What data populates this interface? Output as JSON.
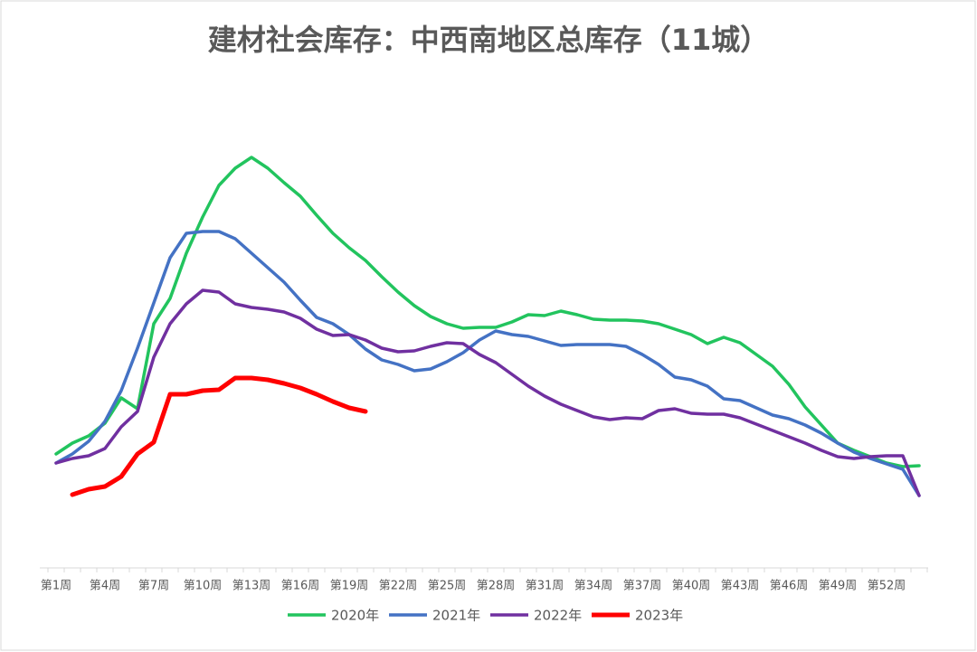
{
  "chart_data": {
    "type": "line",
    "title": "建材社会库存：中西南地区总库存（11城）",
    "categories": [
      "第1周",
      null,
      null,
      "第4周",
      null,
      null,
      "第7周",
      null,
      null,
      "第10周",
      null,
      null,
      "第13周",
      null,
      null,
      "第16周",
      null,
      null,
      "第19周",
      null,
      null,
      "第22周",
      null,
      null,
      "第25周",
      null,
      null,
      "第28周",
      null,
      null,
      "第31周",
      null,
      null,
      "第34周",
      null,
      null,
      "第37周",
      null,
      null,
      "第40周",
      null,
      null,
      "第43周",
      null,
      null,
      "第46周",
      null,
      null,
      "第49周",
      null,
      null,
      "第52周",
      null,
      null
    ],
    "ylim": [
      0,
      100
    ],
    "legend": "bottom",
    "series": [
      {
        "name": "2020年",
        "color": "#22c45e",
        "width": 3.5,
        "values": [
          25.2,
          27.6,
          29.2,
          32,
          37.6,
          35.2,
          54,
          59.6,
          69.6,
          77.6,
          84.6,
          88.4,
          90.8,
          88.4,
          85.2,
          82.2,
          78,
          74,
          70.8,
          68,
          64.4,
          61,
          58,
          55.6,
          54,
          53,
          53.2,
          53.2,
          54.4,
          56,
          55.8,
          56.8,
          56,
          55,
          54.8,
          54.8,
          54.6,
          54,
          52.8,
          51.6,
          49.6,
          51,
          49.8,
          47.2,
          44.6,
          40.6,
          35.6,
          31.6,
          27.6,
          26,
          24.6,
          23.2,
          22.4,
          22.6
        ]
      },
      {
        "name": "2021年",
        "color": "#4472c4",
        "width": 3.5,
        "values": [
          23.2,
          25.2,
          28,
          32.4,
          39.2,
          48.6,
          58.6,
          68.6,
          74,
          74.4,
          74.4,
          72.8,
          69.6,
          66.4,
          63.2,
          59.2,
          55.4,
          54,
          51.6,
          48.4,
          46,
          45,
          43.6,
          44,
          45.6,
          47.6,
          50.4,
          52.4,
          51.6,
          51.2,
          50.2,
          49.2,
          49.4,
          49.4,
          49.4,
          49,
          47.2,
          45,
          42.2,
          41.6,
          40.2,
          37.4,
          37,
          35.4,
          33.8,
          33,
          31.6,
          29.8,
          27.6,
          25.6,
          24.2,
          23,
          21.8,
          16
        ]
      },
      {
        "name": "2022年",
        "color": "#7030a0",
        "width": 3.5,
        "values": [
          23.2,
          24.2,
          24.8,
          26.4,
          31.2,
          34.6,
          46.6,
          54,
          58.4,
          61.4,
          61,
          58.4,
          57.6,
          57.2,
          56.6,
          55.2,
          52.8,
          51.4,
          51.6,
          50.4,
          48.6,
          47.8,
          48,
          49,
          49.8,
          49.6,
          47.2,
          45.4,
          42.8,
          40.2,
          38,
          36.2,
          34.8,
          33.4,
          32.8,
          33.2,
          33,
          34.8,
          35.2,
          34.2,
          34,
          34,
          33.2,
          31.8,
          30.4,
          29,
          27.6,
          26,
          24.6,
          24.2,
          24.6,
          24.8,
          24.8,
          16
        ]
      },
      {
        "name": "2023年",
        "color": "#ff0000",
        "width": 5,
        "values": [
          null,
          16.2,
          17.4,
          18,
          20.2,
          25.2,
          27.8,
          38.4,
          38.4,
          39.2,
          39.4,
          42,
          42,
          41.6,
          40.8,
          39.8,
          38.4,
          36.8,
          35.4,
          34.6,
          null,
          null,
          null,
          null,
          null,
          null,
          null,
          null,
          null,
          null,
          null,
          null,
          null,
          null,
          null,
          null,
          null,
          null,
          null,
          null,
          null,
          null,
          null,
          null,
          null,
          null,
          null,
          null,
          null,
          null,
          null,
          null,
          null,
          null
        ]
      }
    ]
  }
}
